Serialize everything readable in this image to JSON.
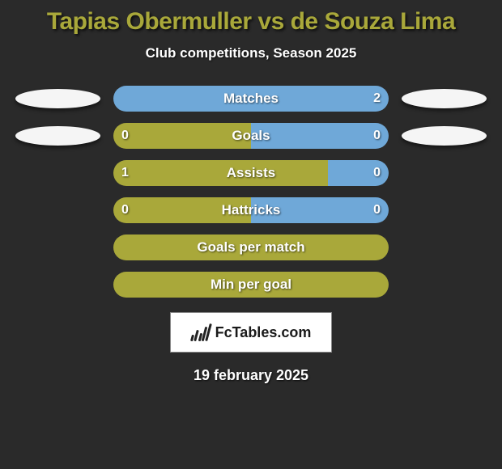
{
  "title": "Tapias Obermuller vs de Souza Lima",
  "subtitle": "Club competitions, Season 2025",
  "date": "19 february 2025",
  "logo_text": "FcTables.com",
  "colors": {
    "left": "#a9a83a",
    "right": "#6fa8d8",
    "title": "#a9a83a",
    "text": "#ffffff",
    "bg": "#2a2a2a"
  },
  "rows": [
    {
      "label": "Matches",
      "left_val": "",
      "right_val": "2",
      "left_pct": 0,
      "right_pct": 100,
      "show_left_avatar": true,
      "show_right_avatar": true
    },
    {
      "label": "Goals",
      "left_val": "0",
      "right_val": "0",
      "left_pct": 50,
      "right_pct": 50,
      "show_left_avatar": true,
      "show_right_avatar": true
    },
    {
      "label": "Assists",
      "left_val": "1",
      "right_val": "0",
      "left_pct": 78,
      "right_pct": 22,
      "show_left_avatar": false,
      "show_right_avatar": false
    },
    {
      "label": "Hattricks",
      "left_val": "0",
      "right_val": "0",
      "left_pct": 50,
      "right_pct": 50,
      "show_left_avatar": false,
      "show_right_avatar": false
    },
    {
      "label": "Goals per match",
      "left_val": "",
      "right_val": "",
      "left_pct": 100,
      "right_pct": 0,
      "show_left_avatar": false,
      "show_right_avatar": false
    },
    {
      "label": "Min per goal",
      "left_val": "",
      "right_val": "",
      "left_pct": 100,
      "right_pct": 0,
      "show_left_avatar": false,
      "show_right_avatar": false
    }
  ]
}
